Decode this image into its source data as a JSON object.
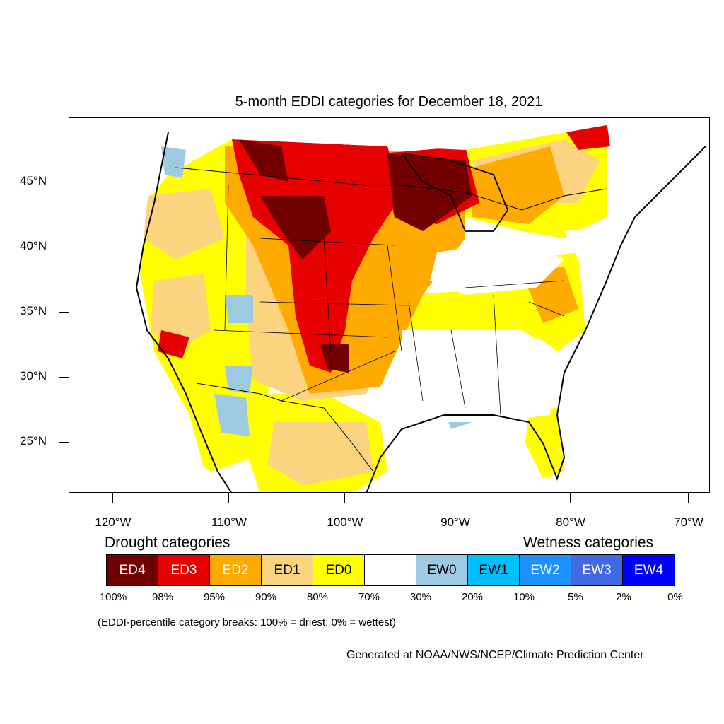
{
  "map": {
    "title": "5-month EDDI categories for December 18, 2021",
    "lat_labels": [
      "45°N",
      "40°N",
      "35°N",
      "30°N",
      "25°N"
    ],
    "lon_labels": [
      "120°W",
      "110°W",
      "100°W",
      "90°W",
      "80°W",
      "70°W"
    ]
  },
  "legend": {
    "drought_heading": "Drought categories",
    "wetness_heading": "Wetness categories",
    "categories": [
      {
        "label": "ED4",
        "color": "#730000",
        "text_color": "#ffffff"
      },
      {
        "label": "ED3",
        "color": "#e60000",
        "text_color": "#ffffff"
      },
      {
        "label": "ED2",
        "color": "#ffaa00",
        "text_color": "#ffffff"
      },
      {
        "label": "ED1",
        "color": "#fcd37f",
        "text_color": "#000000"
      },
      {
        "label": "ED0",
        "color": "#ffff00",
        "text_color": "#000000"
      },
      {
        "label": "",
        "color": "#ffffff",
        "text_color": "#000000"
      },
      {
        "label": "EW0",
        "color": "#9ecae1",
        "text_color": "#000000"
      },
      {
        "label": "EW1",
        "color": "#00bfff",
        "text_color": "#000000"
      },
      {
        "label": "EW2",
        "color": "#1e90ff",
        "text_color": "#ffffff"
      },
      {
        "label": "EW3",
        "color": "#4169e1",
        "text_color": "#ffffff"
      },
      {
        "label": "EW4",
        "color": "#0000ff",
        "text_color": "#ffffff"
      }
    ],
    "percentiles": [
      "100%",
      "98%",
      "95%",
      "90%",
      "80%",
      "70%",
      "30%",
      "20%",
      "10%",
      "5%",
      "2%",
      "0%"
    ],
    "note": "(EDDI-percentile category breaks: 100% = driest; 0% = wettest)"
  },
  "credit": "Generated at NOAA/NWS/NCEP/Climate Prediction Center"
}
